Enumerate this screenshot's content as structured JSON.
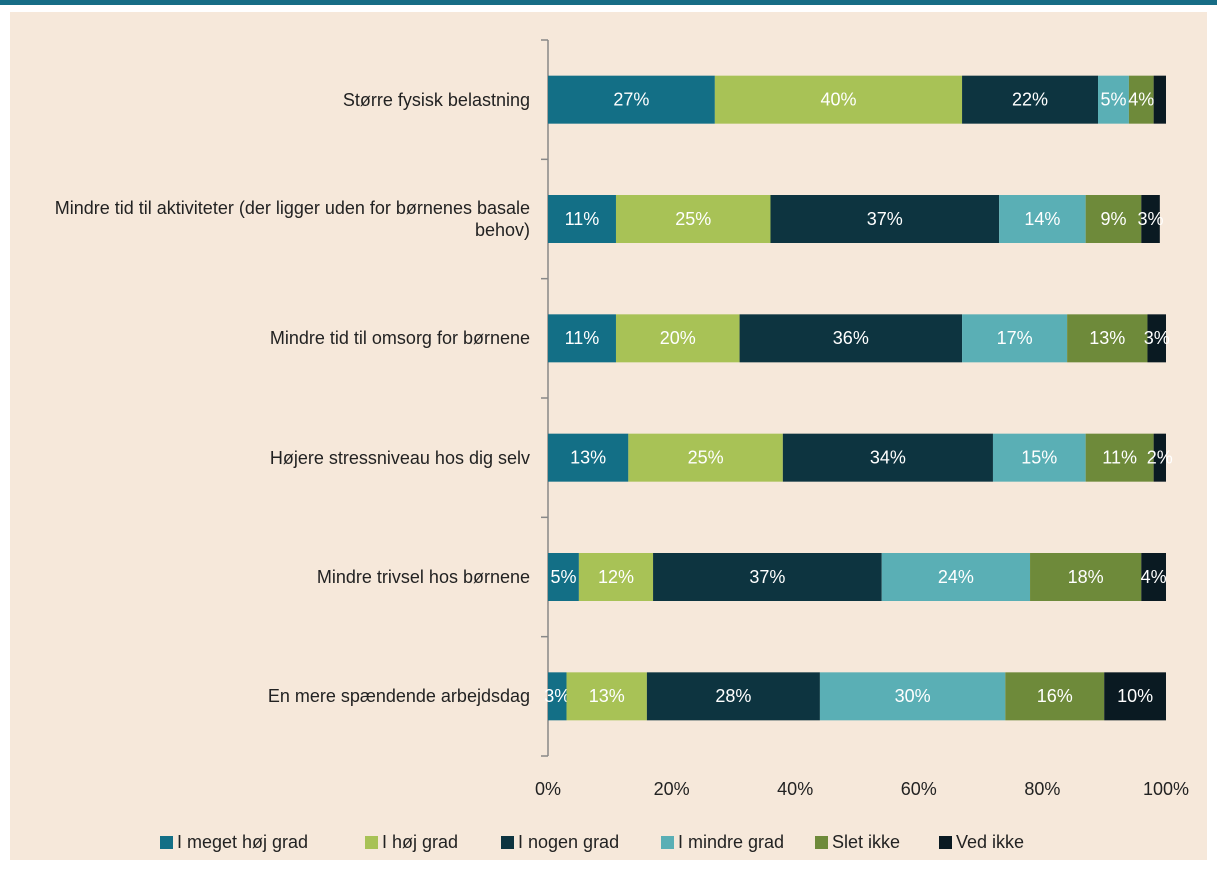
{
  "chart_data": {
    "type": "stacked-bar-horizontal",
    "categories": [
      "Større fysisk belastning",
      "Mindre tid til aktiviteter (der ligger uden for børnenes basale behov)",
      "Mindre tid til omsorg for børnene",
      "Højere stressniveau hos dig selv",
      "Mindre trivsel hos børnene",
      "En mere spændende arbejdsdag"
    ],
    "series": [
      {
        "name": "I meget høj grad",
        "color": "#136f86",
        "values": [
          27,
          11,
          11,
          13,
          5,
          3
        ],
        "value_labels": [
          "27%",
          "11%",
          "11%",
          "13%",
          "5%",
          "3%"
        ]
      },
      {
        "name": "I høj grad",
        "color": "#a8c256",
        "values": [
          40,
          25,
          20,
          25,
          12,
          13
        ],
        "value_labels": [
          "40%",
          "25%",
          "20%",
          "25%",
          "12%",
          "13%"
        ]
      },
      {
        "name": "I nogen grad",
        "color": "#0d3440",
        "values": [
          22,
          37,
          36,
          34,
          37,
          28
        ],
        "value_labels": [
          "22%",
          "37%",
          "36%",
          "34%",
          "37%",
          "28%"
        ]
      },
      {
        "name": "I mindre grad",
        "color": "#5aafb5",
        "values": [
          5,
          14,
          17,
          15,
          24,
          30
        ],
        "value_labels": [
          "5%",
          "14%",
          "17%",
          "15%",
          "24%",
          "30%"
        ]
      },
      {
        "name": "Slet ikke",
        "color": "#6e8a3a",
        "values": [
          4,
          9,
          13,
          11,
          18,
          16
        ],
        "value_labels": [
          "4%",
          "9%",
          "13%",
          "11%",
          "18%",
          "16%"
        ]
      },
      {
        "name": "Ved ikke",
        "color": "#0a1a22",
        "values": [
          2,
          3,
          3,
          2,
          4,
          10
        ],
        "value_labels": [
          null,
          "3%",
          "3%",
          "2%",
          "4%",
          "10%"
        ]
      }
    ],
    "xlim": [
      0,
      100
    ],
    "xticks": [
      {
        "value": 0,
        "label": "0%"
      },
      {
        "value": 20,
        "label": "20%"
      },
      {
        "value": 40,
        "label": "40%"
      },
      {
        "value": 60,
        "label": "60%"
      },
      {
        "value": 80,
        "label": "80%"
      },
      {
        "value": 100,
        "label": "100%"
      }
    ],
    "legend": "bottom"
  }
}
